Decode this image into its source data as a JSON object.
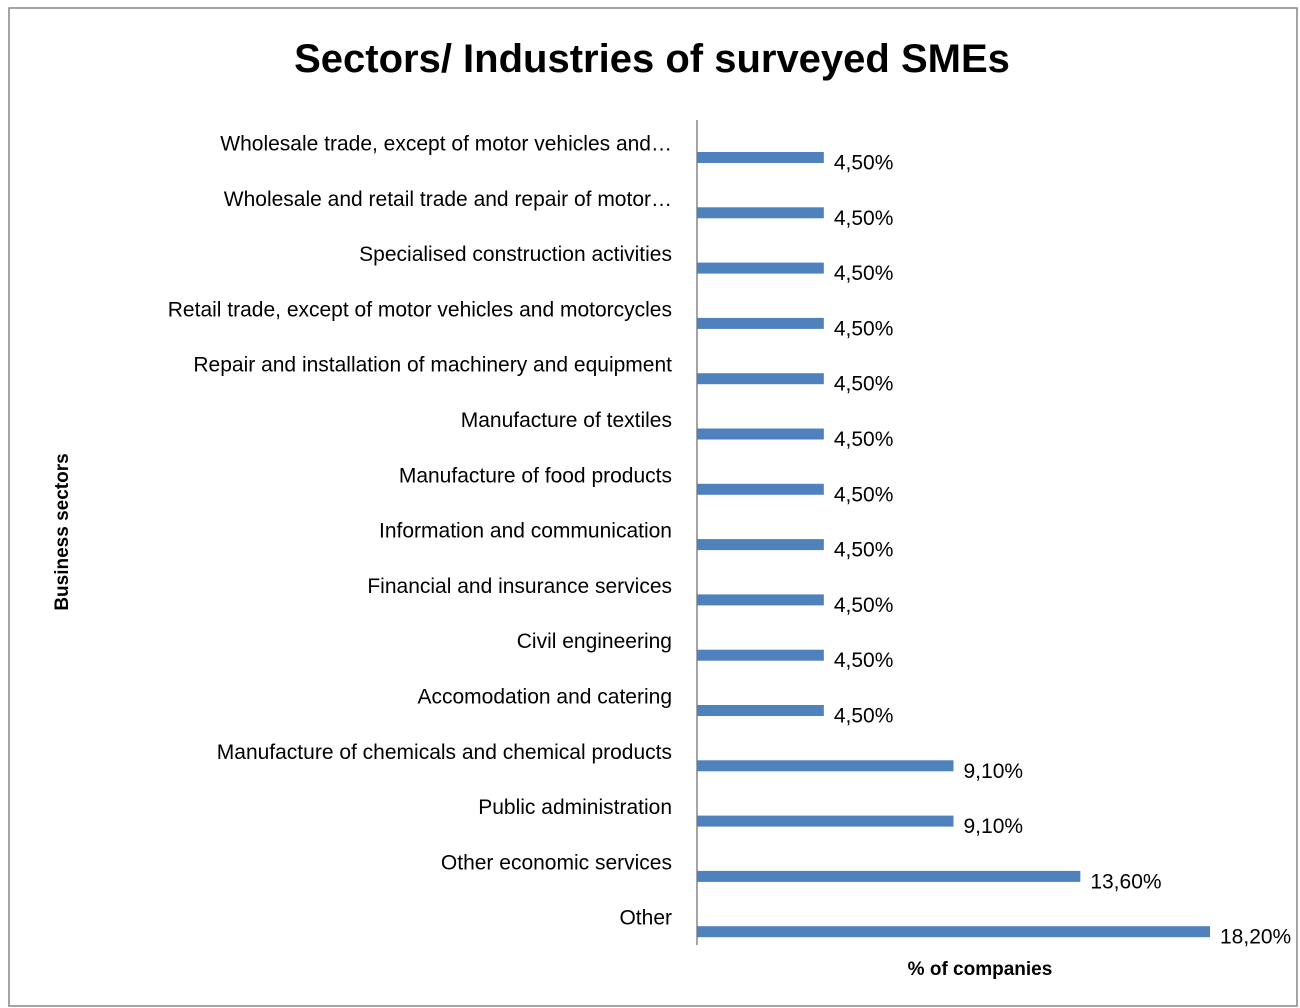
{
  "chart_data": {
    "type": "bar",
    "orientation": "horizontal",
    "title": "Sectors/ Industries of surveyed SMEs",
    "xlabel": "% of companies",
    "ylabel": "Business sectors",
    "categories": [
      "Wholesale trade, except of motor vehicles and…",
      "Wholesale and retail trade and repair of motor…",
      "Specialised construction activities",
      "Retail trade, except of motor vehicles and motorcycles",
      "Repair and installation of machinery and equipment",
      "Manufacture of textiles",
      "Manufacture of food products",
      "Information and communication",
      "Financial and insurance services",
      "Civil engineering",
      "Accomodation and catering",
      "Manufacture of chemicals and chemical products",
      "Public administration",
      "Other economic services",
      "Other"
    ],
    "values": [
      4.5,
      4.5,
      4.5,
      4.5,
      4.5,
      4.5,
      4.5,
      4.5,
      4.5,
      4.5,
      4.5,
      9.1,
      9.1,
      13.6,
      18.2
    ],
    "data_labels": [
      "4,50%",
      "4,50%",
      "4,50%",
      "4,50%",
      "4,50%",
      "4,50%",
      "4,50%",
      "4,50%",
      "4,50%",
      "4,50%",
      "4,50%",
      "9,10%",
      "9,10%",
      "13,60%",
      "18,20%"
    ],
    "xlim": [
      0,
      18.2
    ],
    "grid": false,
    "legend": "none",
    "bar_color": "#4f81bd"
  }
}
